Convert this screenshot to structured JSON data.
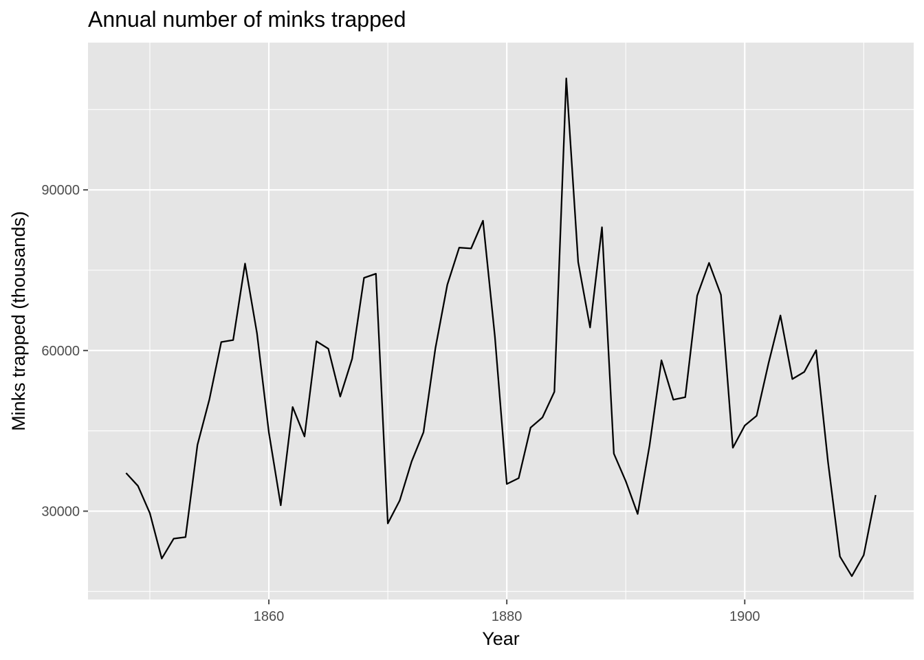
{
  "chart_data": {
    "type": "line",
    "title": "Annual number of minks trapped",
    "xlabel": "Year",
    "ylabel": "Minks trapped (thousands)",
    "xlim": [
      1844.8,
      1914.2
    ],
    "ylim": [
      13500,
      117500
    ],
    "x_ticks": [
      1860,
      1880,
      1900
    ],
    "x_minor": [
      1850,
      1870,
      1890,
      1910
    ],
    "y_ticks": [
      30000,
      60000,
      90000
    ],
    "y_minor": [
      15000,
      45000,
      75000,
      105000
    ],
    "grid": true,
    "legend": "none",
    "colors": {
      "panel": "#e5e5e5",
      "grid": "#ffffff",
      "line": "#000000",
      "tick": "#4d4d4d"
    },
    "series": [
      {
        "x": [
          1848,
          1849,
          1850,
          1851,
          1852,
          1853,
          1854,
          1855,
          1856,
          1857,
          1858,
          1859,
          1860,
          1861,
          1862,
          1863,
          1864,
          1865,
          1866,
          1867,
          1868,
          1869,
          1870,
          1871,
          1872,
          1873,
          1874,
          1875,
          1876,
          1877,
          1878,
          1879,
          1880,
          1881,
          1882,
          1883,
          1884,
          1885,
          1886,
          1887,
          1888,
          1889,
          1890,
          1891,
          1892,
          1893,
          1894,
          1895,
          1896,
          1897,
          1898,
          1899,
          1900,
          1901,
          1902,
          1903,
          1904,
          1905,
          1906,
          1907,
          1908,
          1909,
          1910,
          1911
        ],
        "values": [
          37123,
          34712,
          29619,
          21151,
          24859,
          25152,
          42375,
          50839,
          61581,
          61951,
          76231,
          63264,
          44730,
          31094,
          49452,
          43961,
          61727,
          60334,
          51404,
          58451,
          73575,
          74343,
          27708,
          31985,
          39266,
          44740,
          60429,
          72273,
          79214,
          79060,
          84244,
          62590,
          35072,
          36160,
          45600,
          47508,
          52290,
          110824,
          76503,
          64303,
          83023,
          40748,
          35596,
          29479,
          42264,
          58171,
          50815,
          51285,
          70229,
          76365,
          70407,
          41839,
          45978,
          47813,
          57620,
          66549,
          54673,
          55996,
          60053,
          39169,
          21534,
          17857,
          21788,
          33008
        ]
      }
    ]
  }
}
